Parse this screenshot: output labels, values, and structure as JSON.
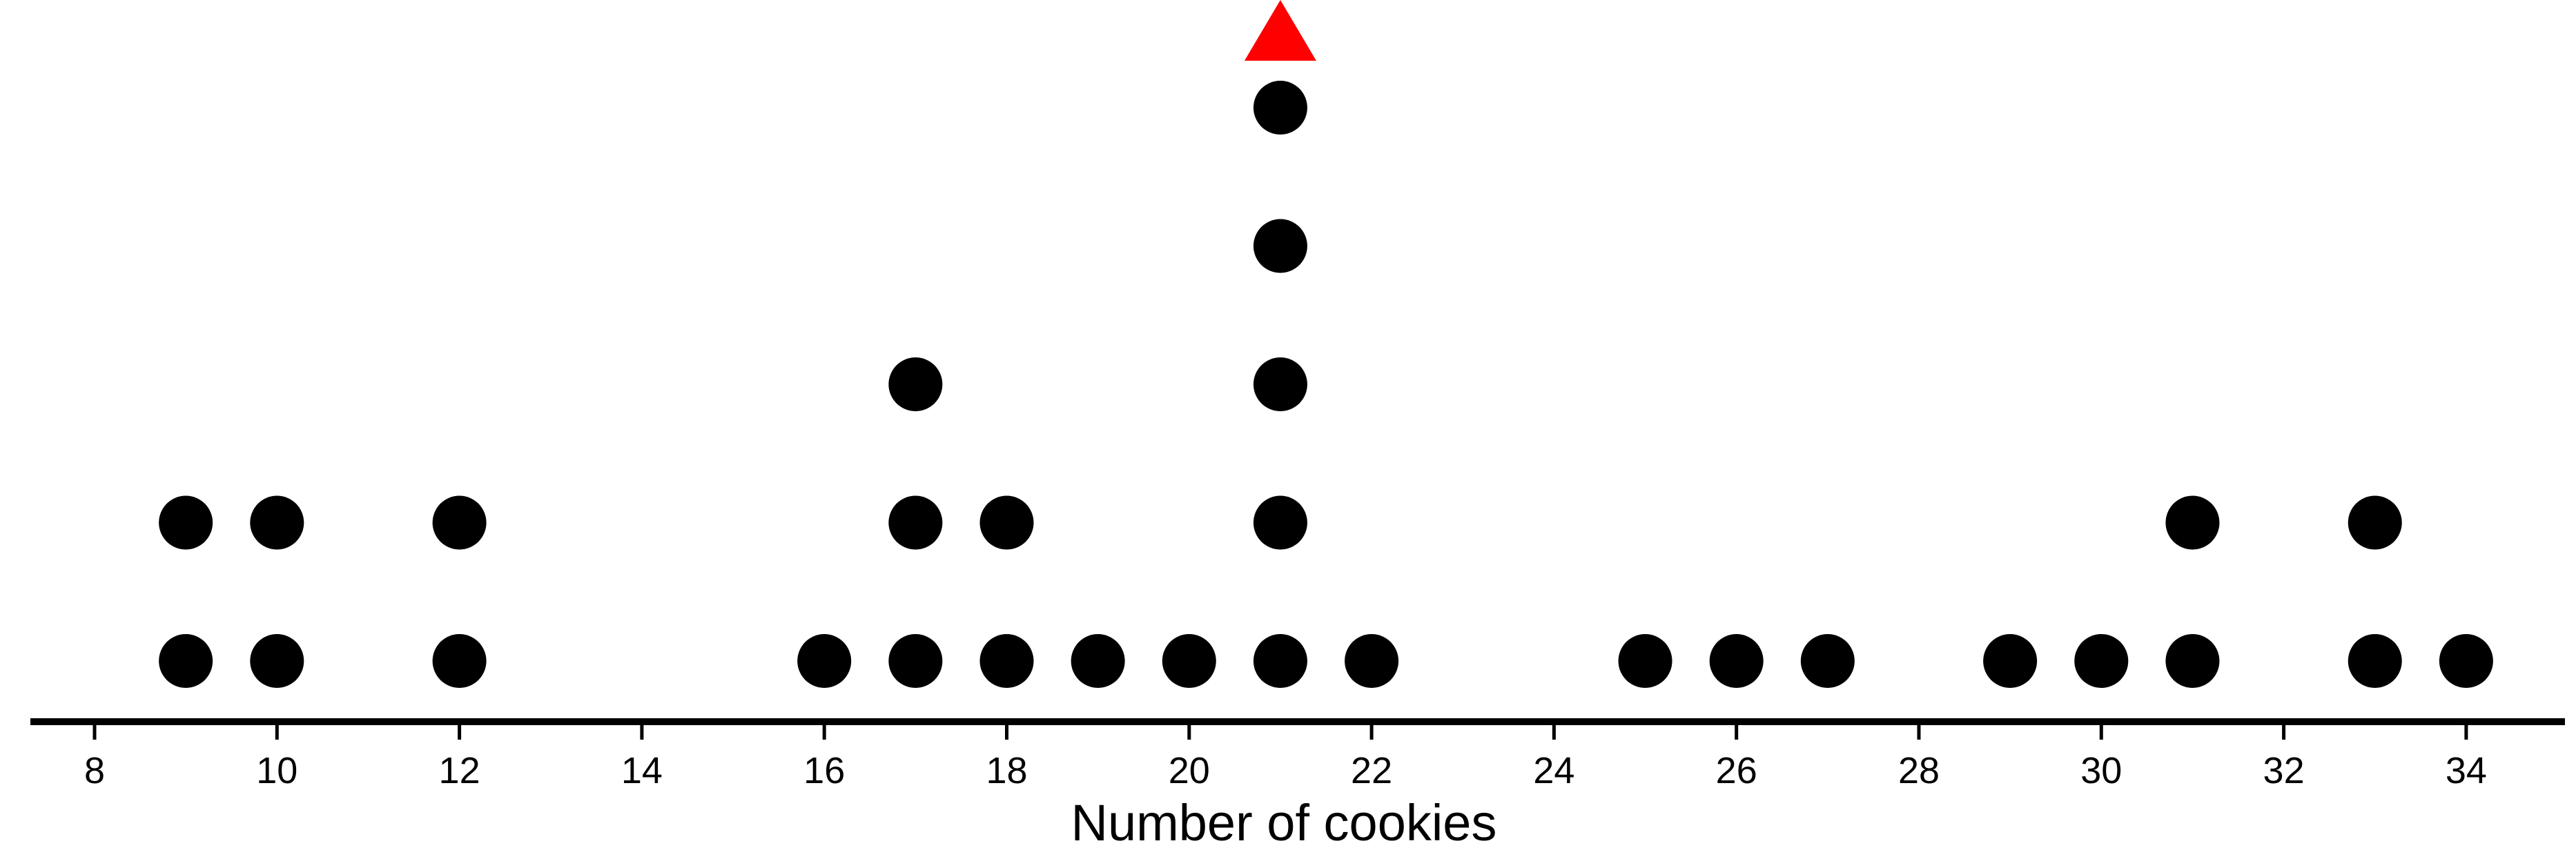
{
  "chart_data": {
    "type": "scatter",
    "subtype": "dot-plot",
    "title": "",
    "xlabel": "Number of cookies",
    "ylabel": "",
    "xlim": [
      7.3,
      35.1
    ],
    "xticks": [
      8,
      10,
      12,
      14,
      16,
      18,
      20,
      22,
      24,
      26,
      28,
      30,
      32,
      34
    ],
    "grid": false,
    "legend": "none",
    "points": [
      {
        "x": 9,
        "y": 1
      },
      {
        "x": 9,
        "y": 2
      },
      {
        "x": 10,
        "y": 1
      },
      {
        "x": 10,
        "y": 2
      },
      {
        "x": 12,
        "y": 1
      },
      {
        "x": 12,
        "y": 2
      },
      {
        "x": 16,
        "y": 1
      },
      {
        "x": 17,
        "y": 1
      },
      {
        "x": 17,
        "y": 2
      },
      {
        "x": 17,
        "y": 3
      },
      {
        "x": 18,
        "y": 1
      },
      {
        "x": 18,
        "y": 2
      },
      {
        "x": 19,
        "y": 1
      },
      {
        "x": 20,
        "y": 1
      },
      {
        "x": 21,
        "y": 1
      },
      {
        "x": 21,
        "y": 2
      },
      {
        "x": 21,
        "y": 3
      },
      {
        "x": 21,
        "y": 4
      },
      {
        "x": 21,
        "y": 5
      },
      {
        "x": 22,
        "y": 1
      },
      {
        "x": 25,
        "y": 1
      },
      {
        "x": 26,
        "y": 1
      },
      {
        "x": 27,
        "y": 1
      },
      {
        "x": 29,
        "y": 1
      },
      {
        "x": 30,
        "y": 1
      },
      {
        "x": 31,
        "y": 1
      },
      {
        "x": 31,
        "y": 2
      },
      {
        "x": 33,
        "y": 1
      },
      {
        "x": 33,
        "y": 2
      },
      {
        "x": 34,
        "y": 1
      }
    ],
    "marker": {
      "x": 21,
      "color": "#ff0000",
      "shape": "triangle"
    },
    "dot_color": "#000000",
    "axis_color": "#000000"
  }
}
